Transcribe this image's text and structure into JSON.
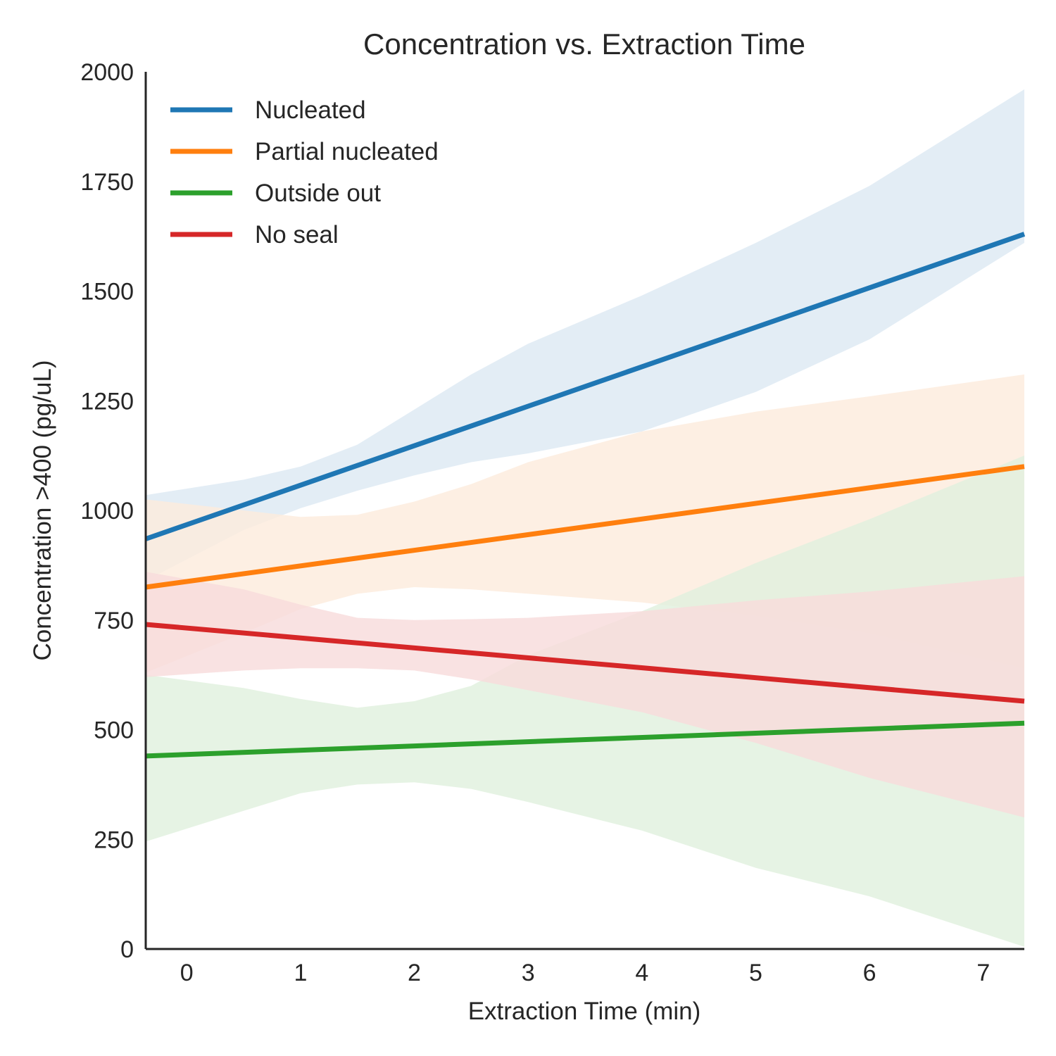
{
  "chart_data": {
    "type": "line",
    "title": "Concentration vs. Extraction Time",
    "xlabel": "Extraction Time (min)",
    "ylabel": "Concentration >400 (pg/uL)",
    "xlim": [
      -0.36,
      7.36
    ],
    "ylim": [
      0,
      2000
    ],
    "xticks": [
      0,
      1,
      2,
      3,
      4,
      5,
      6,
      7
    ],
    "yticks": [
      0,
      250,
      500,
      750,
      1000,
      1250,
      1500,
      1750,
      2000
    ],
    "grid": false,
    "legend_position": "upper-left",
    "series": [
      {
        "name": "Nucleated",
        "color": "#1f77b4",
        "band_color": "#dde9f3",
        "x": [
          -0.36,
          7.36
        ],
        "y": [
          935,
          1630
        ],
        "ci_x": [
          -0.36,
          0.5,
          1.0,
          1.5,
          2.0,
          2.5,
          3.0,
          4.0,
          5.0,
          6.0,
          7.36
        ],
        "ci_lower": [
          840,
          955,
          1005,
          1045,
          1080,
          1110,
          1130,
          1180,
          1270,
          1390,
          1610
        ],
        "ci_upper": [
          1035,
          1070,
          1100,
          1150,
          1230,
          1310,
          1380,
          1490,
          1610,
          1740,
          1960
        ]
      },
      {
        "name": "Partial nucleated",
        "color": "#ff7f0e",
        "band_color": "#fdebdd",
        "x": [
          -0.36,
          7.36
        ],
        "y": [
          825,
          1100
        ],
        "ci_x": [
          -0.36,
          0.5,
          1.0,
          1.5,
          2.0,
          2.5,
          3.0,
          4.0,
          5.0,
          6.0,
          7.36
        ],
        "ci_lower": [
          630,
          720,
          775,
          810,
          825,
          820,
          810,
          790,
          760,
          720,
          640
        ],
        "ci_upper": [
          1025,
          1000,
          985,
          990,
          1020,
          1060,
          1110,
          1180,
          1225,
          1260,
          1310
        ]
      },
      {
        "name": "Outside out",
        "color": "#2ca02c",
        "band_color": "#e0f0de",
        "x": [
          -0.36,
          7.36
        ],
        "y": [
          440,
          515
        ],
        "ci_x": [
          -0.36,
          0.5,
          1.0,
          1.5,
          2.0,
          2.5,
          3.0,
          4.0,
          5.0,
          6.0,
          7.36
        ],
        "ci_lower": [
          245,
          315,
          355,
          375,
          380,
          365,
          335,
          270,
          185,
          120,
          5
        ],
        "ci_upper": [
          625,
          595,
          570,
          550,
          565,
          600,
          670,
          770,
          880,
          980,
          1125
        ]
      },
      {
        "name": "No seal",
        "color": "#d62728",
        "band_color": "#f8dcdc",
        "x": [
          -0.36,
          7.36
        ],
        "y": [
          740,
          565
        ],
        "ci_x": [
          -0.36,
          0.5,
          1.0,
          1.5,
          2.0,
          2.5,
          3.0,
          4.0,
          5.0,
          6.0,
          7.36
        ],
        "ci_lower": [
          620,
          635,
          640,
          640,
          635,
          615,
          590,
          540,
          470,
          390,
          300
        ],
        "ci_upper": [
          860,
          820,
          785,
          755,
          750,
          752,
          755,
          770,
          795,
          815,
          850
        ]
      }
    ]
  }
}
